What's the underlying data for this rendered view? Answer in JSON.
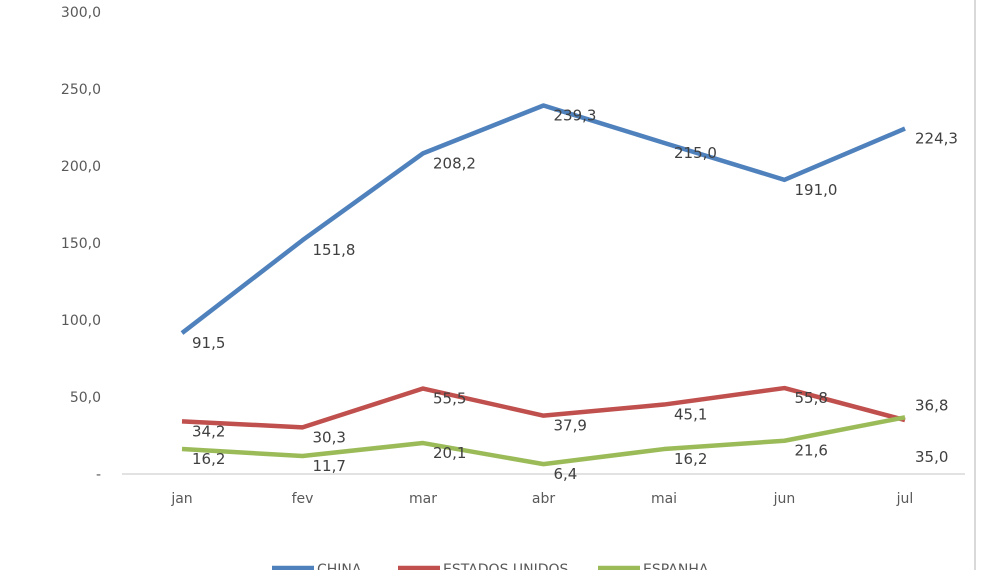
{
  "chart_data": {
    "type": "line",
    "title": "",
    "xlabel": "",
    "ylabel": "",
    "categories": [
      "jan",
      "fev",
      "mar",
      "abr",
      "mai",
      "jun",
      "jul"
    ],
    "ylim": [
      0,
      300
    ],
    "yticks": [
      "-",
      "50,0",
      "100,0",
      "150,0",
      "200,0",
      "250,0",
      "300,0"
    ],
    "grid": false,
    "legend": "bottom",
    "series": [
      {
        "name": "CHINA",
        "color": "#4F81BD",
        "values": [
          91.5,
          151.8,
          208.2,
          239.3,
          215.0,
          191.0,
          224.3
        ],
        "labels": [
          "91,5",
          "151,8",
          "208,2",
          "239,3",
          "215,0",
          "191,0",
          "224,3"
        ]
      },
      {
        "name": "ESTADOS UNIDOS",
        "color": "#C0504D",
        "values": [
          34.2,
          30.3,
          55.5,
          37.9,
          45.1,
          55.8,
          35.0
        ],
        "labels": [
          "34,2",
          "30,3",
          "55,5",
          "37,9",
          "45,1",
          "55,8",
          "35,0"
        ]
      },
      {
        "name": "ESPANHA",
        "color": "#9BBB59",
        "values": [
          16.2,
          11.7,
          20.1,
          6.4,
          16.2,
          21.6,
          36.8
        ],
        "labels": [
          "16,2",
          "11,7",
          "20,1",
          "6,4",
          "16,2",
          "21,6",
          "36,8"
        ]
      }
    ]
  }
}
